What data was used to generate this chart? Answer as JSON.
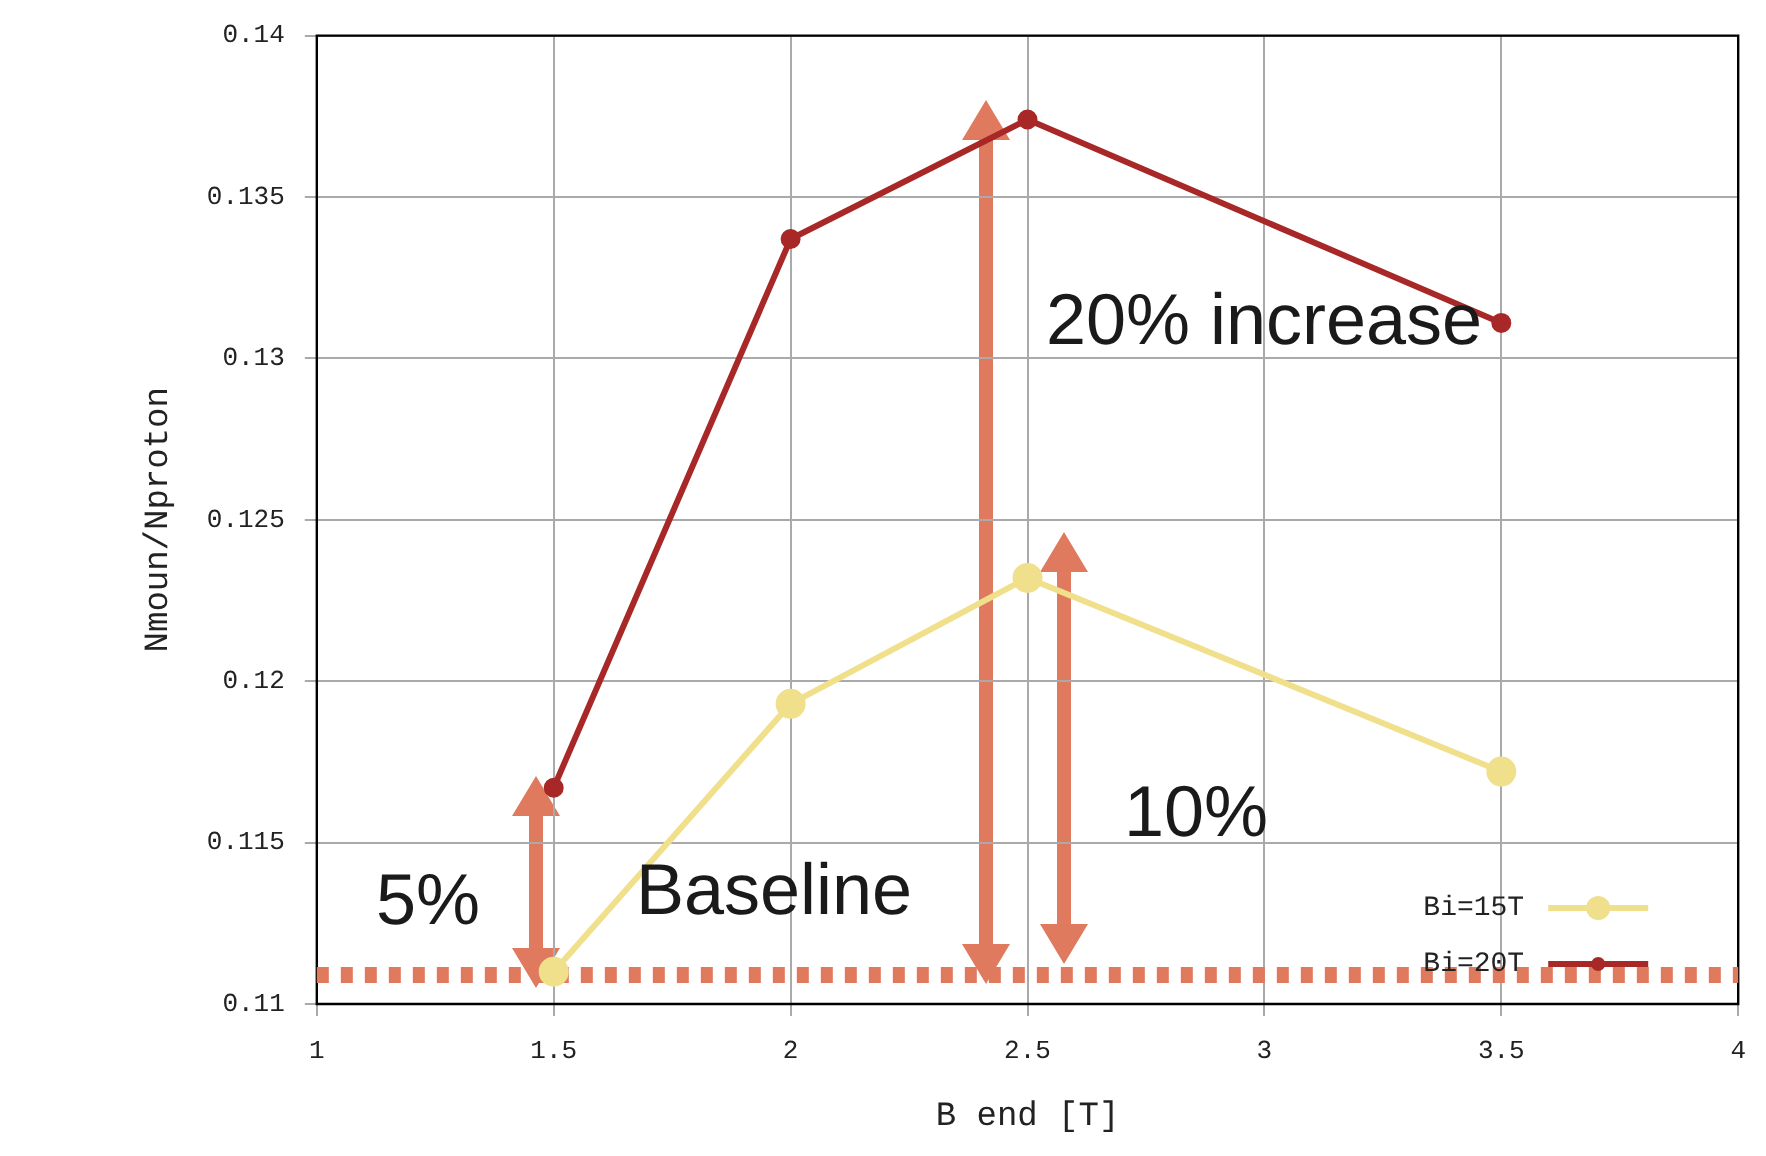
{
  "chart_data": {
    "type": "line",
    "xlabel": "B end [T]",
    "ylabel": "Nmoun/Nproton",
    "x": [
      1.5,
      2,
      2.5,
      3.5
    ],
    "series": [
      {
        "name": "Bi=15T",
        "color": "#f0e08c",
        "values": [
          0.111,
          0.1193,
          0.1232,
          0.1172
        ]
      },
      {
        "name": "Bi=20T",
        "color": "#a82828",
        "values": [
          0.1167,
          0.1337,
          0.1374,
          0.1311
        ]
      }
    ],
    "xlim": [
      1,
      4
    ],
    "xticks": [
      1,
      1.5,
      2,
      2.5,
      3,
      3.5,
      4
    ],
    "ylim": [
      0.11,
      0.14
    ],
    "yticks": [
      0.11,
      0.115,
      0.12,
      0.125,
      0.13,
      0.135,
      0.14
    ],
    "ref_lines": [
      {
        "axis": "y",
        "value": 0.1109,
        "color": "#e07a5f",
        "line_style": "dotted"
      }
    ],
    "annotations": [
      "20% increase",
      "10%",
      "5%",
      "Baseline"
    ],
    "grid": true,
    "legend": "bottom right",
    "marker": "circle",
    "line_style": "solid"
  }
}
